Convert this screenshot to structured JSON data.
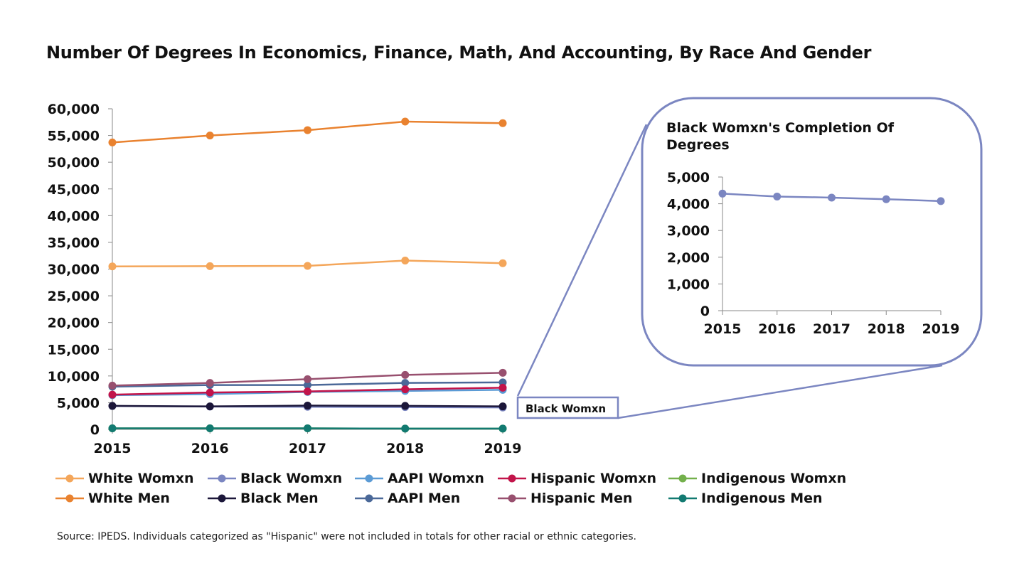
{
  "title": "Number Of Degrees In Economics, Finance, Math, And Accounting, By Race And Gender",
  "source": "Source: IPEDS. Individuals categorized as \"Hispanic\" were not included in totals for other racial or ethnic categories.",
  "chart_data": [
    {
      "type": "line",
      "title": "Number Of Degrees In Economics, Finance, Math, And Accounting, By Race And Gender",
      "x": [
        "2015",
        "2016",
        "2017",
        "2018",
        "2019"
      ],
      "ylim": [
        0,
        60000
      ],
      "yticks": [
        0,
        5000,
        10000,
        15000,
        20000,
        25000,
        30000,
        35000,
        40000,
        45000,
        50000,
        55000,
        60000
      ],
      "ytick_labels": [
        "0",
        "5,000",
        "10,000",
        "15,000",
        "20,000",
        "25,000",
        "30,000",
        "35,000",
        "40,000",
        "45,000",
        "50,000",
        "55,000",
        "60,000"
      ],
      "grid": false,
      "legend_position": "bottom",
      "series": [
        {
          "name": "White Womxn",
          "color": "#F4A65A",
          "values": [
            30500,
            30550,
            30600,
            31600,
            31100
          ]
        },
        {
          "name": "White Men",
          "color": "#E9822F",
          "values": [
            53700,
            55000,
            56000,
            57600,
            57300
          ]
        },
        {
          "name": "Black Womxn",
          "color": "#7B86C1",
          "values": [
            4380,
            4270,
            4230,
            4170,
            4100
          ]
        },
        {
          "name": "Black Men",
          "color": "#1B1639",
          "values": [
            4400,
            4300,
            4450,
            4400,
            4300
          ]
        },
        {
          "name": "AAPI Womxn",
          "color": "#5B9BD5",
          "values": [
            6400,
            6600,
            7000,
            7200,
            7400
          ]
        },
        {
          "name": "AAPI Men",
          "color": "#4A6898",
          "values": [
            8000,
            8300,
            8300,
            8700,
            8800
          ]
        },
        {
          "name": "Hispanic Womxn",
          "color": "#C2144A",
          "values": [
            6500,
            6900,
            7100,
            7500,
            7800
          ]
        },
        {
          "name": "Hispanic Men",
          "color": "#98506F",
          "values": [
            8200,
            8700,
            9400,
            10200,
            10600
          ]
        },
        {
          "name": "Indigenous Womxn",
          "color": "#73B04B",
          "values": [
            200,
            200,
            200,
            150,
            150
          ]
        },
        {
          "name": "Indigenous Men",
          "color": "#127A71",
          "values": [
            200,
            200,
            200,
            150,
            150
          ]
        }
      ],
      "callout_label": "Black Womxn"
    },
    {
      "type": "line",
      "title": "Black Womxn's Completion Of Degrees",
      "x": [
        "2015",
        "2016",
        "2017",
        "2018",
        "2019"
      ],
      "ylim": [
        0,
        5000
      ],
      "yticks": [
        0,
        1000,
        2000,
        3000,
        4000,
        5000
      ],
      "ytick_labels": [
        "0",
        "1,000",
        "2,000",
        "3,000",
        "4,000",
        "5,000"
      ],
      "grid": false,
      "series": [
        {
          "color": "#7B86C1",
          "values": [
            4380,
            4270,
            4230,
            4170,
            4100
          ]
        }
      ]
    }
  ],
  "inset": {
    "title_line1": "Black Womxn's Completion Of",
    "title_line2": "Degrees",
    "border_color": "#7B86C1"
  }
}
